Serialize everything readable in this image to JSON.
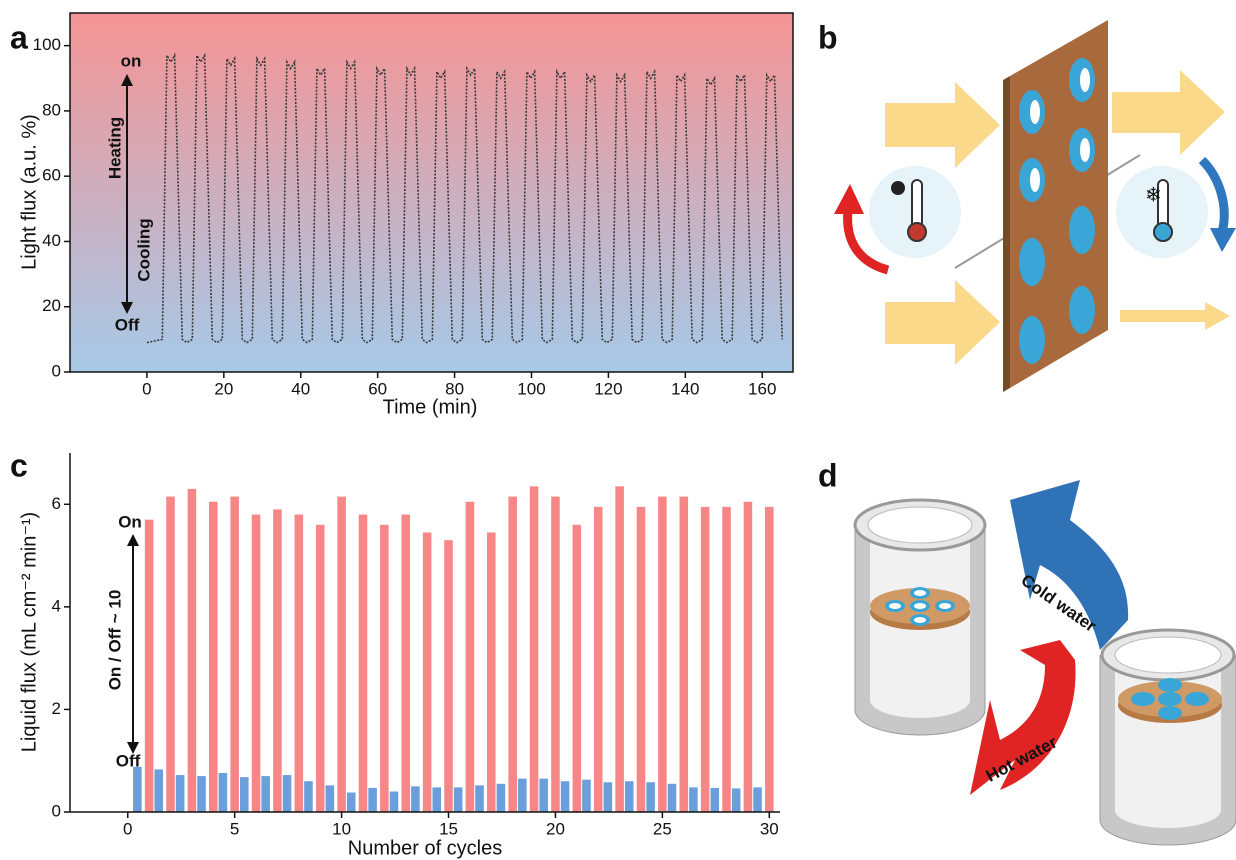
{
  "chart_data": [
    {
      "type": "line",
      "panel": "a",
      "ylabel": "Light flux (a.u. %)",
      "xlabel": "Time (min)",
      "annotations": [
        "on",
        "Off",
        "Heating",
        "Cooling"
      ],
      "xlim": [
        -20,
        168
      ],
      "xticks": [
        0,
        20,
        40,
        60,
        80,
        100,
        120,
        140,
        160
      ],
      "ylim": [
        0,
        110
      ],
      "yticks": [
        0,
        20,
        40,
        60,
        80,
        100
      ],
      "x": [
        0,
        4,
        5.2,
        6.2,
        7.2,
        9.2,
        10.4,
        11.8,
        13,
        14,
        15,
        17,
        18.2,
        19.6,
        20.8,
        21.8,
        22.8,
        24.8,
        26,
        27.4,
        28.6,
        29.6,
        30.6,
        32.6,
        33.8,
        35.2,
        36.4,
        37.4,
        38.4,
        40.4,
        41.6,
        43,
        44.2,
        45.2,
        46.2,
        48.2,
        49.4,
        50.8,
        52,
        53,
        54,
        56,
        57.2,
        58.6,
        59.8,
        60.8,
        61.8,
        63.8,
        65,
        66.4,
        67.6,
        68.6,
        69.6,
        71.6,
        72.8,
        74.2,
        75.4,
        76.4,
        77.4,
        79.4,
        80.6,
        82,
        83.2,
        84.2,
        85.2,
        87.2,
        88.4,
        89.8,
        91,
        92,
        93,
        95,
        96.2,
        97.6,
        98.8,
        99.8,
        100.8,
        102.8,
        104,
        105.4,
        106.6,
        107.6,
        108.6,
        110.6,
        111.8,
        113.2,
        114.4,
        115.4,
        116.4,
        118.4,
        119.6,
        121,
        122.2,
        123.2,
        124.2,
        126.2,
        127.4,
        128.8,
        130,
        131,
        132,
        134,
        135.2,
        136.6,
        137.8,
        138.8,
        139.8,
        141.8,
        143,
        144.4,
        145.6,
        146.6,
        147.6,
        149.6,
        150.8,
        152.2,
        153.4,
        154.4,
        155.4,
        157.4,
        158.6,
        160,
        161.2,
        162.2,
        163.2,
        165.2
      ],
      "series": [
        {
          "color": "#3a3a3a",
          "values": [
            9,
            10,
            97,
            95,
            97,
            10,
            9,
            10,
            97,
            95,
            97,
            10,
            9,
            10,
            96,
            94,
            96,
            10,
            9,
            10,
            96,
            94,
            96,
            10,
            9,
            10,
            95,
            93,
            95,
            10,
            9,
            10,
            93,
            91,
            93,
            10,
            9,
            10,
            95,
            93,
            95,
            10,
            9,
            10,
            93,
            91,
            93,
            10,
            9,
            10,
            93,
            91,
            93,
            10,
            9,
            10,
            92,
            90,
            92,
            10,
            9,
            10,
            93,
            91,
            93,
            10,
            9,
            10,
            92,
            90,
            92,
            10,
            9,
            10,
            92,
            90,
            92,
            10,
            9,
            10,
            92,
            90,
            92,
            10,
            9,
            10,
            91,
            89,
            91,
            10,
            9,
            10,
            91,
            89,
            91,
            10,
            9,
            10,
            92,
            90,
            92,
            10,
            9,
            10,
            91,
            89,
            91,
            10,
            9,
            10,
            90,
            88,
            90,
            10,
            9,
            10,
            91,
            89,
            91,
            10,
            9,
            10,
            91,
            89,
            91,
            10
          ]
        }
      ]
    },
    {
      "type": "bar",
      "panel": "c",
      "ylabel": "Liquid flux (mL cm⁻² min⁻¹)",
      "xlabel": "Number of cycles",
      "annotations": [
        "On",
        "Off",
        "On / Off ~ 10"
      ],
      "xlim": [
        -2.7,
        30.5
      ],
      "xticks": [
        0,
        5,
        10,
        15,
        20,
        25,
        30
      ],
      "ylim": [
        0,
        7
      ],
      "yticks": [
        0,
        2,
        4,
        6
      ],
      "series": [
        {
          "color": "#f78787",
          "x": [
            1,
            2,
            3,
            4,
            5,
            6,
            7,
            8,
            9,
            10,
            11,
            12,
            13,
            14,
            15,
            16,
            17,
            18,
            19,
            20,
            21,
            22,
            23,
            24,
            25,
            26,
            27,
            28,
            29,
            30
          ],
          "values": [
            5.7,
            6.15,
            6.3,
            6.05,
            6.15,
            5.8,
            5.9,
            5.8,
            5.6,
            6.15,
            5.8,
            5.6,
            5.8,
            5.45,
            5.3,
            6.05,
            5.45,
            6.15,
            6.35,
            6.15,
            5.6,
            5.95,
            6.35,
            5.95,
            6.15,
            6.15,
            5.95,
            5.95,
            6.05,
            5.95
          ]
        },
        {
          "color": "#6a9fdc",
          "x": [
            0.45,
            1.45,
            2.45,
            3.45,
            4.45,
            5.45,
            6.45,
            7.45,
            8.45,
            9.45,
            10.45,
            11.45,
            12.45,
            13.45,
            14.45,
            15.45,
            16.45,
            17.45,
            18.45,
            19.45,
            20.45,
            21.45,
            22.45,
            23.45,
            24.45,
            25.45,
            26.45,
            27.45,
            28.45,
            29.45
          ],
          "values": [
            0.88,
            0.83,
            0.72,
            0.7,
            0.76,
            0.68,
            0.7,
            0.72,
            0.6,
            0.52,
            0.38,
            0.47,
            0.4,
            0.5,
            0.48,
            0.48,
            0.52,
            0.55,
            0.65,
            0.65,
            0.6,
            0.63,
            0.58,
            0.6,
            0.58,
            0.55,
            0.48,
            0.47,
            0.46,
            0.48
          ]
        }
      ]
    }
  ],
  "diagrams": {
    "b": {
      "label": "b"
    },
    "d": {
      "label": "d",
      "cold": "Cold water",
      "hot": "Hot water"
    }
  }
}
